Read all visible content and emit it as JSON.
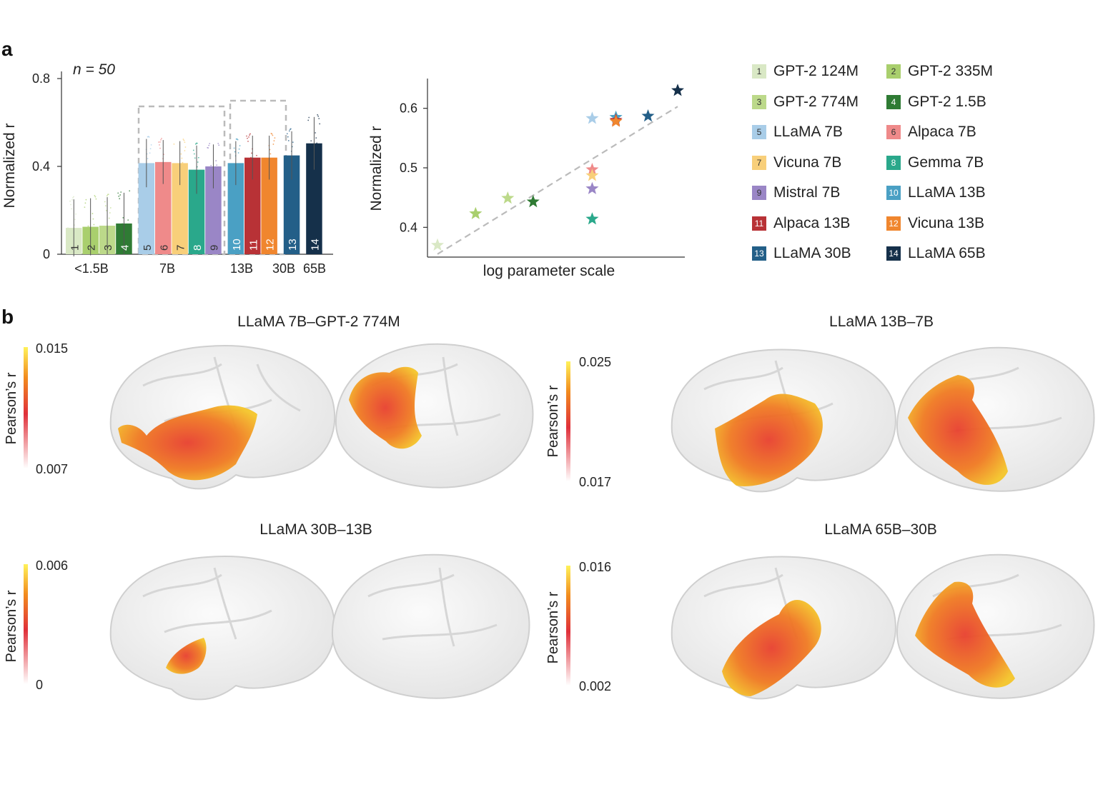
{
  "panel_a_label": "a",
  "panel_b_label": "b",
  "chart_data": [
    {
      "id": "bar",
      "type": "bar",
      "n_label": "n = 50",
      "ylabel": "Normalized r",
      "ylim": [
        0,
        0.8
      ],
      "yticks": [
        0,
        0.4,
        0.8
      ],
      "ytick_labels": [
        "0",
        "0.4",
        "0.8"
      ],
      "categories": [
        "1",
        "2",
        "3",
        "4",
        "5",
        "6",
        "7",
        "8",
        "9",
        "10",
        "11",
        "12",
        "13",
        "14"
      ],
      "values": [
        0.12,
        0.125,
        0.13,
        0.14,
        0.415,
        0.42,
        0.415,
        0.385,
        0.4,
        0.415,
        0.44,
        0.44,
        0.45,
        0.505
      ],
      "errors": [
        0.13,
        0.13,
        0.13,
        0.14,
        0.11,
        0.1,
        0.1,
        0.11,
        0.1,
        0.1,
        0.1,
        0.1,
        0.11,
        0.12
      ],
      "group_labels": [
        "<1.5B",
        "7B",
        "13B",
        "30B",
        "65B"
      ]
    },
    {
      "id": "scatter",
      "type": "scatter",
      "xlabel": "log parameter scale",
      "ylabel": "Normalized r",
      "ylim": [
        0.35,
        0.65
      ],
      "yticks": [
        0.4,
        0.5,
        0.6
      ],
      "ytick_labels": [
        "0.4",
        "0.5",
        "0.6"
      ],
      "points": [
        {
          "model": 1,
          "x": 0.124,
          "y": 0.37
        },
        {
          "model": 2,
          "x": 0.335,
          "y": 0.423
        },
        {
          "model": 3,
          "x": 0.774,
          "y": 0.449
        },
        {
          "model": 4,
          "x": 1.5,
          "y": 0.443
        },
        {
          "model": 5,
          "x": 7,
          "y": 0.583
        },
        {
          "model": 6,
          "x": 7,
          "y": 0.497
        },
        {
          "model": 7,
          "x": 7,
          "y": 0.487
        },
        {
          "model": 8,
          "x": 7,
          "y": 0.414
        },
        {
          "model": 9,
          "x": 7,
          "y": 0.465
        },
        {
          "model": 10,
          "x": 13,
          "y": 0.585
        },
        {
          "model": 11,
          "x": 13,
          "y": 0.58
        },
        {
          "model": 12,
          "x": 13,
          "y": 0.578
        },
        {
          "model": 13,
          "x": 30,
          "y": 0.587
        },
        {
          "model": 14,
          "x": 65,
          "y": 0.63
        }
      ],
      "trend": {
        "from": [
          0.124,
          0.355
        ],
        "to": [
          65,
          0.603
        ]
      }
    }
  ],
  "legend": [
    {
      "num": "1",
      "label": "GPT-2 124M",
      "color": "#d9e8c5",
      "num_color": "#333333"
    },
    {
      "num": "2",
      "label": "GPT-2 335M",
      "color": "#a9cf6d",
      "num_color": "#333333"
    },
    {
      "num": "3",
      "label": "GPT-2 774M",
      "color": "#bcd98a",
      "num_color": "#333333"
    },
    {
      "num": "4",
      "label": "GPT-2 1.5B",
      "color": "#2f7b34",
      "num_color": "#ffffff"
    },
    {
      "num": "5",
      "label": "LLaMA 7B",
      "color": "#a9cde8",
      "num_color": "#333333"
    },
    {
      "num": "6",
      "label": "Alpaca 7B",
      "color": "#ef8a8a",
      "num_color": "#333333"
    },
    {
      "num": "7",
      "label": "Vicuna 7B",
      "color": "#f8cf7a",
      "num_color": "#333333"
    },
    {
      "num": "8",
      "label": "Gemma 7B",
      "color": "#2aa88b",
      "num_color": "#ffffff"
    },
    {
      "num": "9",
      "label": "Mistral 7B",
      "color": "#9a86c6",
      "num_color": "#333333"
    },
    {
      "num": "10",
      "label": "LLaMA 13B",
      "color": "#4aa0c4",
      "num_color": "#ffffff"
    },
    {
      "num": "11",
      "label": "Alpaca 13B",
      "color": "#b83236",
      "num_color": "#ffffff"
    },
    {
      "num": "12",
      "label": "Vicuna 13B",
      "color": "#f0862e",
      "num_color": "#ffffff"
    },
    {
      "num": "13",
      "label": "LLaMA 30B",
      "color": "#235f88",
      "num_color": "#ffffff"
    },
    {
      "num": "14",
      "label": "LLaMA 65B",
      "color": "#15304a",
      "num_color": "#ffffff"
    }
  ],
  "brain_panels": [
    {
      "title": "LLaMA 7B–GPT-2 774M",
      "cbar_label": "Pearson’s r",
      "cbar_max": "0.015",
      "cbar_min": "0.007"
    },
    {
      "title": "LLaMA 13B–7B",
      "cbar_label": "Pearson’s r",
      "cbar_max": "0.025",
      "cbar_min": "0.017"
    },
    {
      "title": "LLaMA 30B–13B",
      "cbar_label": "Pearson’s r",
      "cbar_max": "0.006",
      "cbar_min": "0"
    },
    {
      "title": "LLaMA 65B–30B",
      "cbar_label": "Pearson’s r",
      "cbar_max": "0.016",
      "cbar_min": "0.002"
    }
  ],
  "colors": {
    "axis": "#333333",
    "trend": "#bbbbbb",
    "brain": "#eeeeee",
    "brain_stroke": "#cfcfcf"
  }
}
